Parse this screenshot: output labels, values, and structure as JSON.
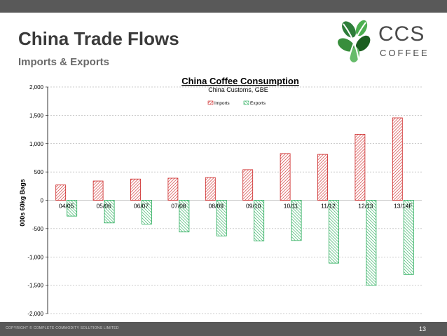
{
  "slide": {
    "title": "China Trade Flows",
    "subtitle": "Imports & Exports",
    "page_number": "13",
    "copyright": "COPYRIGHT © COMPLETE COMMODITY SOLUTIONS LIMITED"
  },
  "logo": {
    "name": "CCS",
    "tagline": "COFFEE",
    "icon": "coffee-leaf-logo-icon"
  },
  "chart_data": {
    "type": "bar",
    "title": "China Coffee Consumption",
    "subtitle": "China Customs, GBE",
    "ylabel": "000s 60kg Bags",
    "xlabel": "",
    "ylim": [
      -2000,
      2000
    ],
    "yticks": [
      2000,
      1500,
      1000,
      500,
      0,
      -500,
      -1000,
      -1500,
      -2000
    ],
    "ytick_labels": [
      "2,000",
      "1,500",
      "1,000",
      "500",
      "0",
      "-500",
      "-1,000",
      "-1,500",
      "-2,000"
    ],
    "grid": true,
    "legend_position": "top",
    "categories": [
      "04/05",
      "05/06",
      "06/07",
      "07/08",
      "08/09",
      "09/10",
      "10/11",
      "11/12",
      "12/13",
      "13/14F"
    ],
    "series": [
      {
        "name": "Imports",
        "color": "#cc2222",
        "pattern": "diagonal-hatch",
        "values": [
          270,
          340,
          375,
          390,
          400,
          540,
          825,
          810,
          1165,
          1455
        ]
      },
      {
        "name": "Exports",
        "color": "#22aa55",
        "pattern": "diagonal-hatch",
        "values": [
          -280,
          -400,
          -420,
          -560,
          -630,
          -720,
          -710,
          -1110,
          -1500,
          -1310
        ]
      }
    ]
  }
}
